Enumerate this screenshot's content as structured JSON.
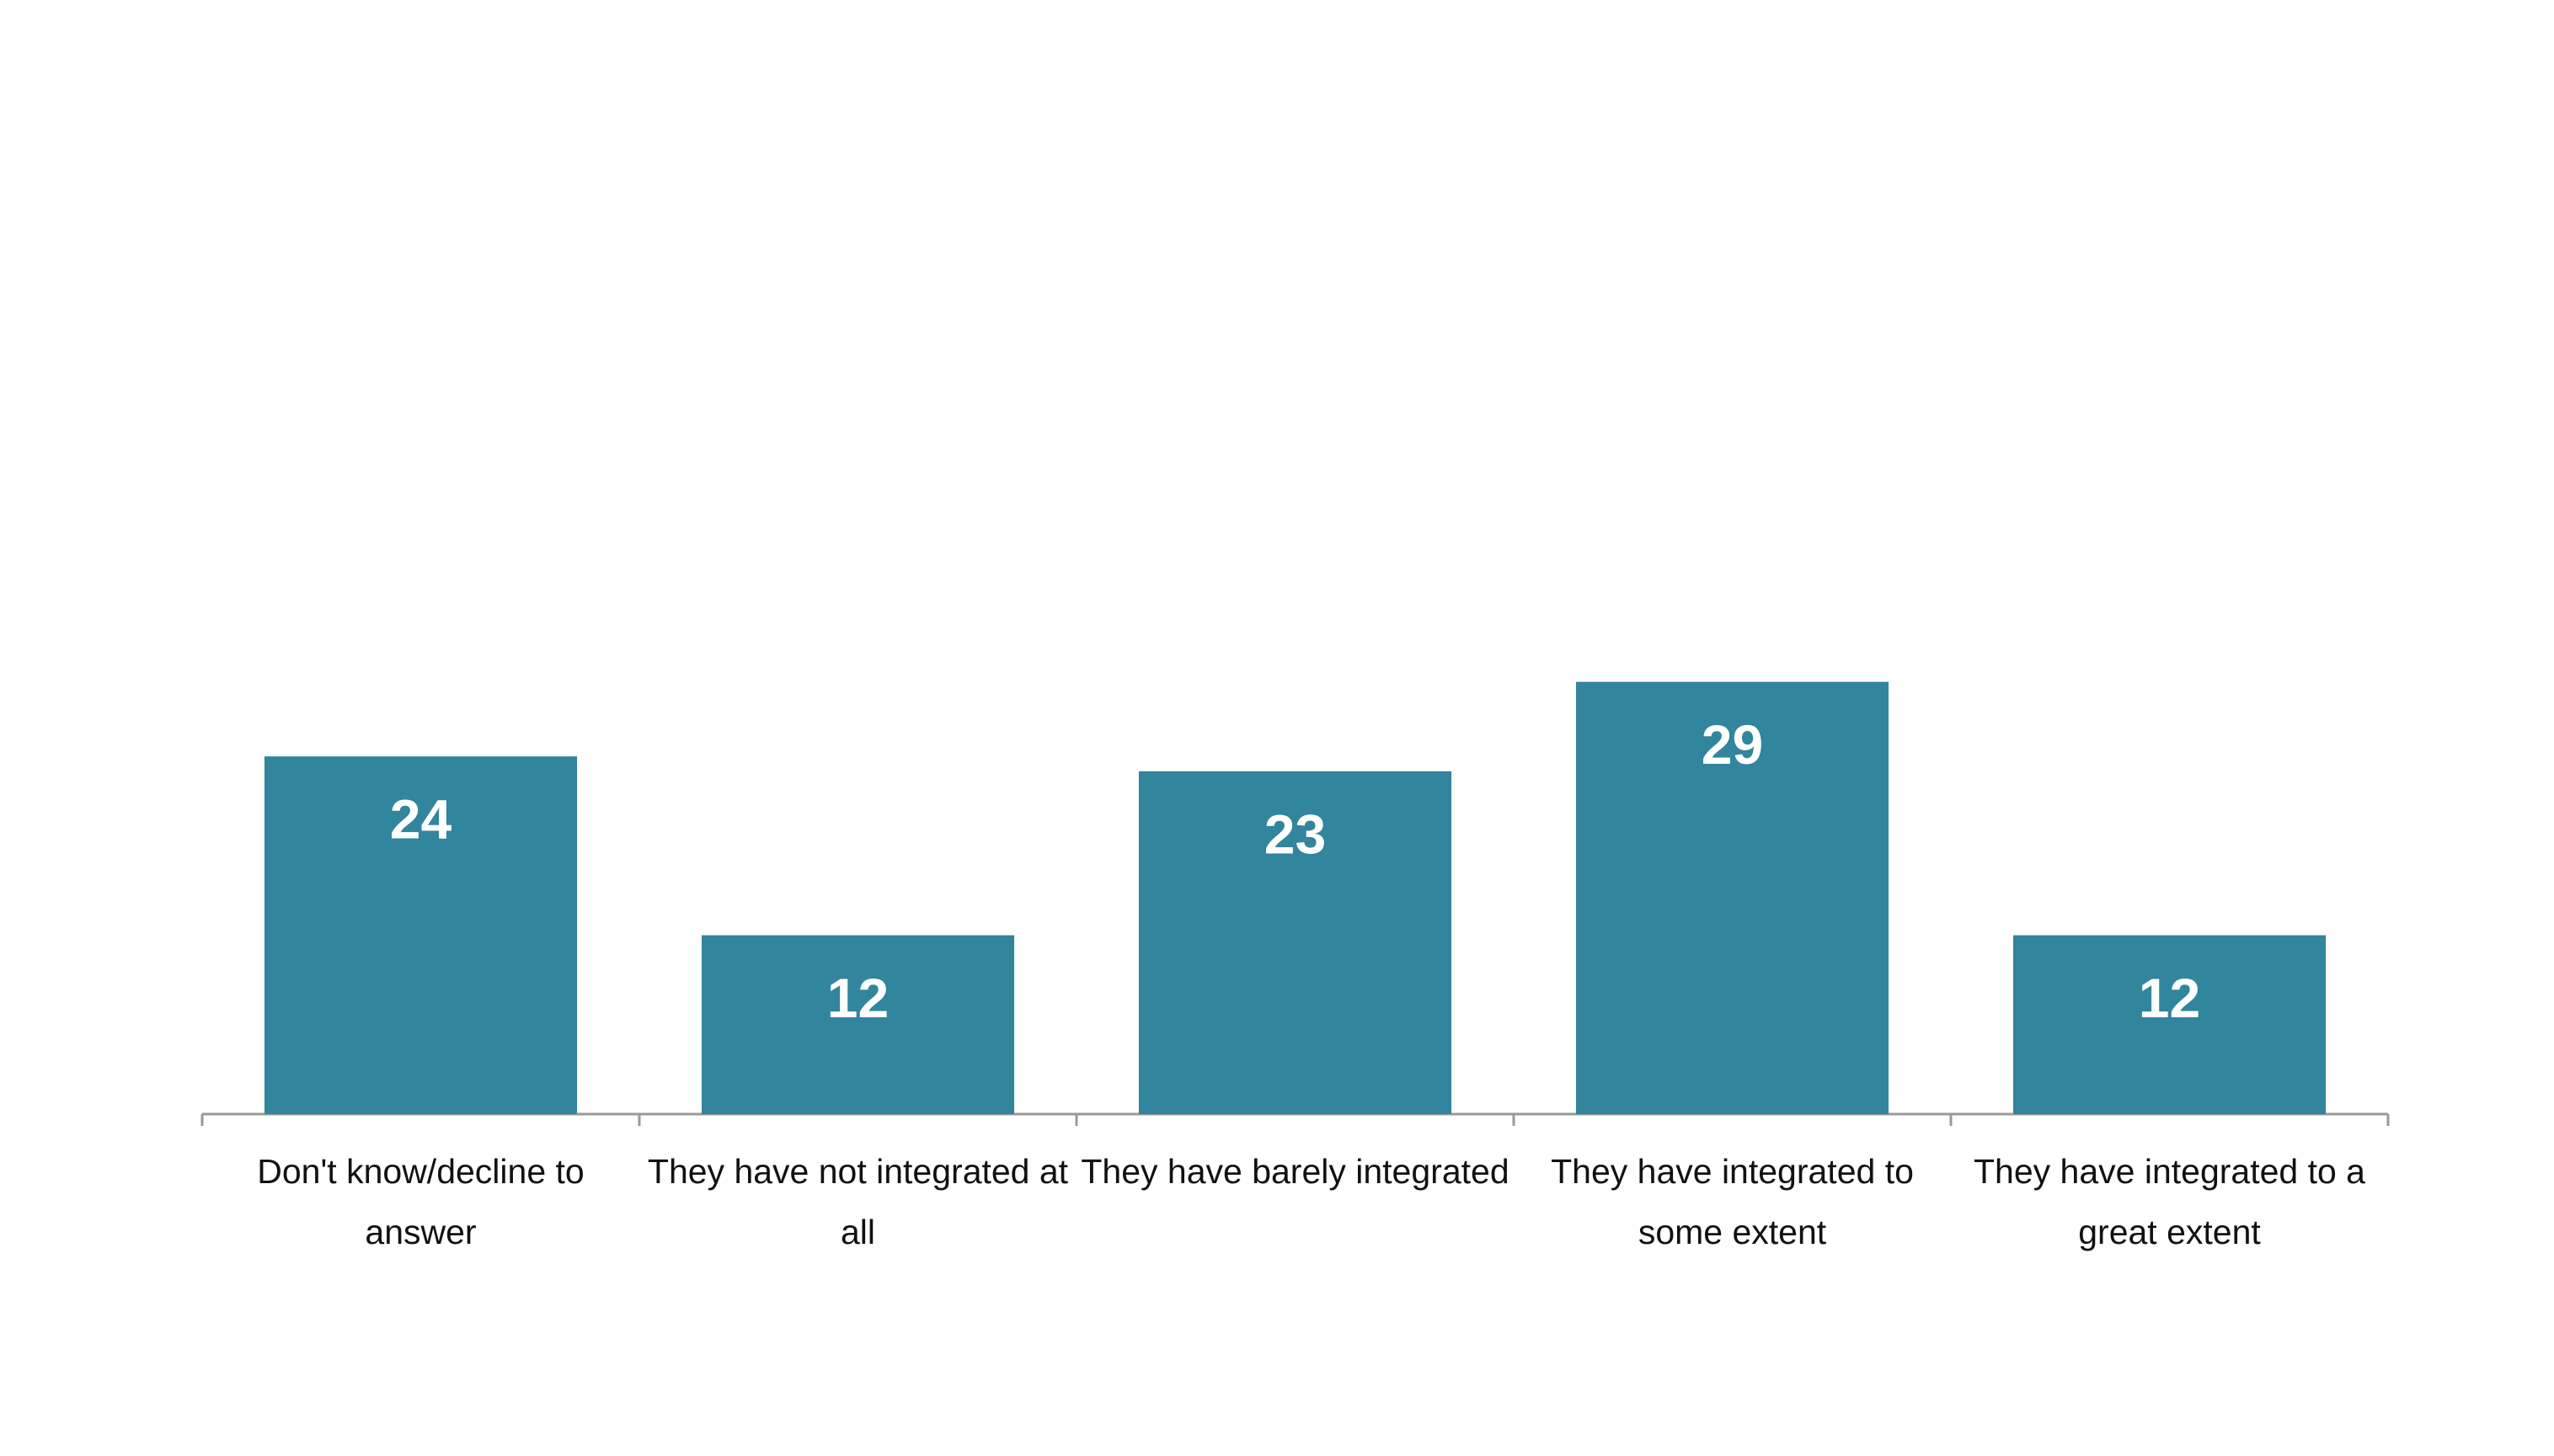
{
  "chart_data": {
    "type": "bar",
    "categories": [
      "Don't know/decline to answer",
      "They have not integrated at all",
      "They have barely integrated",
      "They have integrated to some extent",
      "They have integrated to a great extent"
    ],
    "values": [
      24,
      12,
      23,
      29,
      12
    ],
    "color": "#31859c"
  }
}
